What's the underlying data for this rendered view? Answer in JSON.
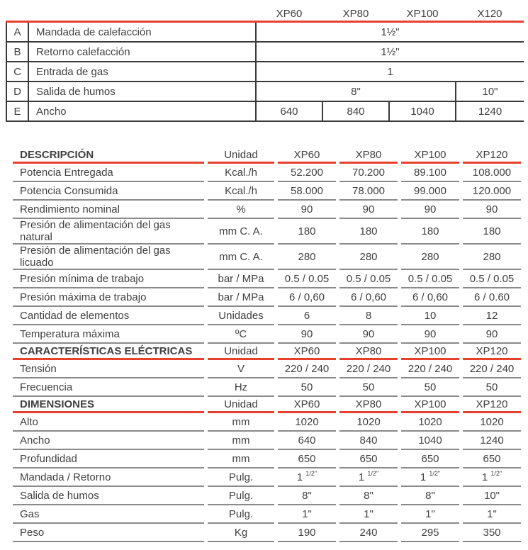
{
  "colors": {
    "accent_red": "#e6402e",
    "dark_border": "#3a3a3a",
    "gray_border": "#8a8a8a",
    "text": "#414141"
  },
  "connections_table": {
    "columns": [
      "XP60",
      "XP80",
      "XP100",
      "X120"
    ],
    "rows": [
      {
        "letter": "A",
        "label": "Mandada de calefacción",
        "values": [
          {
            "text": "1½\"",
            "span": 4
          }
        ]
      },
      {
        "letter": "B",
        "label": "Retorno calefacción",
        "values": [
          {
            "text": "1½\"",
            "span": 4
          }
        ]
      },
      {
        "letter": "C",
        "label": "Entrada de gas",
        "values": [
          {
            "text": "1",
            "span": 4
          }
        ]
      },
      {
        "letter": "D",
        "label": "Salida de humos",
        "values": [
          {
            "text": "8\"",
            "span": 3
          },
          {
            "text": "10\"",
            "span": 1
          }
        ]
      },
      {
        "letter": "E",
        "label": "Ancho",
        "values": [
          {
            "text": "640",
            "span": 1
          },
          {
            "text": "840",
            "span": 1
          },
          {
            "text": "1040",
            "span": 1
          },
          {
            "text": "1240",
            "span": 1
          }
        ]
      }
    ]
  },
  "spec_table": {
    "sections": [
      {
        "title": "DESCRIPCIÓN",
        "unit_header": "Unidad",
        "columns": [
          "XP60",
          "XP80",
          "XP100",
          "XP120"
        ],
        "rows": [
          {
            "label": "Potencia Entregada",
            "unit": "Kcal./h",
            "values": [
              "52.200",
              "70.200",
              "89.100",
              "108.000"
            ]
          },
          {
            "label": "Potencia Consumida",
            "unit": "Kcal./h",
            "values": [
              "58.000",
              "78.000",
              "99.000",
              "120.000"
            ]
          },
          {
            "label": "Rendimiento nominal",
            "unit": "%",
            "values": [
              "90",
              "90",
              "90",
              "90"
            ]
          },
          {
            "label": "Presión de alimentación del gas natural",
            "unit": "mm C. A.",
            "values": [
              "180",
              "180",
              "180",
              "180"
            ]
          },
          {
            "label": "Presión de alimentación del gas licuado",
            "unit": "mm C. A.",
            "values": [
              "280",
              "280",
              "280",
              "280"
            ]
          },
          {
            "label": "Presión mínima de trabajo",
            "unit": "bar / MPa",
            "values": [
              "0.5 / 0.05",
              "0.5 / 0.05",
              "0.5 / 0.05",
              "0.5 / 0.05"
            ]
          },
          {
            "label": "Presión máxima de trabajo",
            "unit": "bar / MPa",
            "values": [
              "6 / 0,60",
              "6 / 0,60",
              "6 / 0,60",
              "6 / 0.60"
            ]
          },
          {
            "label": "Cantidad de elementos",
            "unit": "Unidades",
            "values": [
              "6",
              "8",
              "10",
              "12"
            ]
          },
          {
            "label": "Temperatura máxima",
            "unit": "ºC",
            "values": [
              "90",
              "90",
              "90",
              "90"
            ]
          }
        ]
      },
      {
        "title": "CARACTERÍSTICAS ELÉCTRICAS",
        "unit_header": "Unidad",
        "columns": [
          "XP60",
          "XP80",
          "XP100",
          "XP120"
        ],
        "rows": [
          {
            "label": "Tensión",
            "unit": "V",
            "values": [
              "220 / 240",
              "220 / 240",
              "220 / 240",
              "220 / 240"
            ]
          },
          {
            "label": "Frecuencia",
            "unit": "Hz",
            "values": [
              "50",
              "50",
              "50",
              "50"
            ]
          }
        ]
      },
      {
        "title": "DIMENSIONES",
        "unit_header": "Unidad",
        "columns": [
          "XP60",
          "XP80",
          "XP100",
          "XP120"
        ],
        "rows": [
          {
            "label": "Alto",
            "unit": "mm",
            "values": [
              "1020",
              "1020",
              "1020",
              "1020"
            ]
          },
          {
            "label": "Ancho",
            "unit": "mm",
            "values": [
              "640",
              "840",
              "1040",
              "1240"
            ]
          },
          {
            "label": "Profundidad",
            "unit": "mm",
            "values": [
              "650",
              "650",
              "650",
              "650"
            ]
          },
          {
            "label": "Mandada / Retorno",
            "unit": "Pulg.",
            "values": [
              {
                "base": "1 ",
                "sup": "1/2\""
              },
              {
                "base": "1 ",
                "sup": "1/2\""
              },
              {
                "base": "1 ",
                "sup": "1/2\""
              },
              {
                "base": "1 ",
                "sup": "1/2\""
              }
            ]
          },
          {
            "label": "Salida de humos",
            "unit": "Pulg.",
            "values": [
              "8\"",
              "8\"",
              "8\"",
              "10\""
            ]
          },
          {
            "label": "Gas",
            "unit": "Pulg.",
            "values": [
              "1\"",
              "1\"",
              "1\"",
              "1\""
            ]
          },
          {
            "label": "Peso",
            "unit": "Kg",
            "values": [
              "190",
              "240",
              "295",
              "350"
            ]
          }
        ]
      }
    ]
  }
}
